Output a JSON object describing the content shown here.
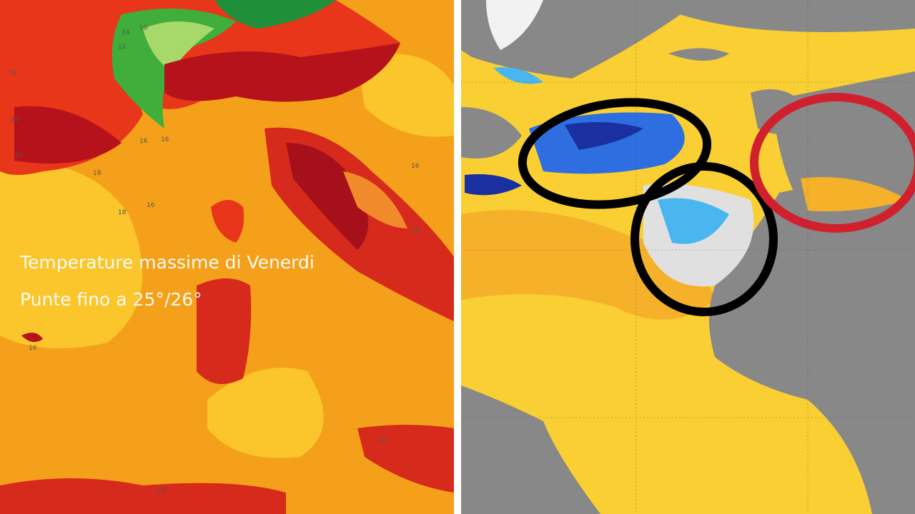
{
  "left_map": {
    "caption_line1": "Temperature massime di Venerdi",
    "caption_line2": "Punte fino a 25°/26°",
    "contour_labels": [
      "14",
      "12",
      "10",
      "16",
      "18",
      "20",
      "16",
      "18",
      "16",
      "16",
      "20",
      "18",
      "16",
      "16",
      "18",
      "20"
    ]
  }
}
